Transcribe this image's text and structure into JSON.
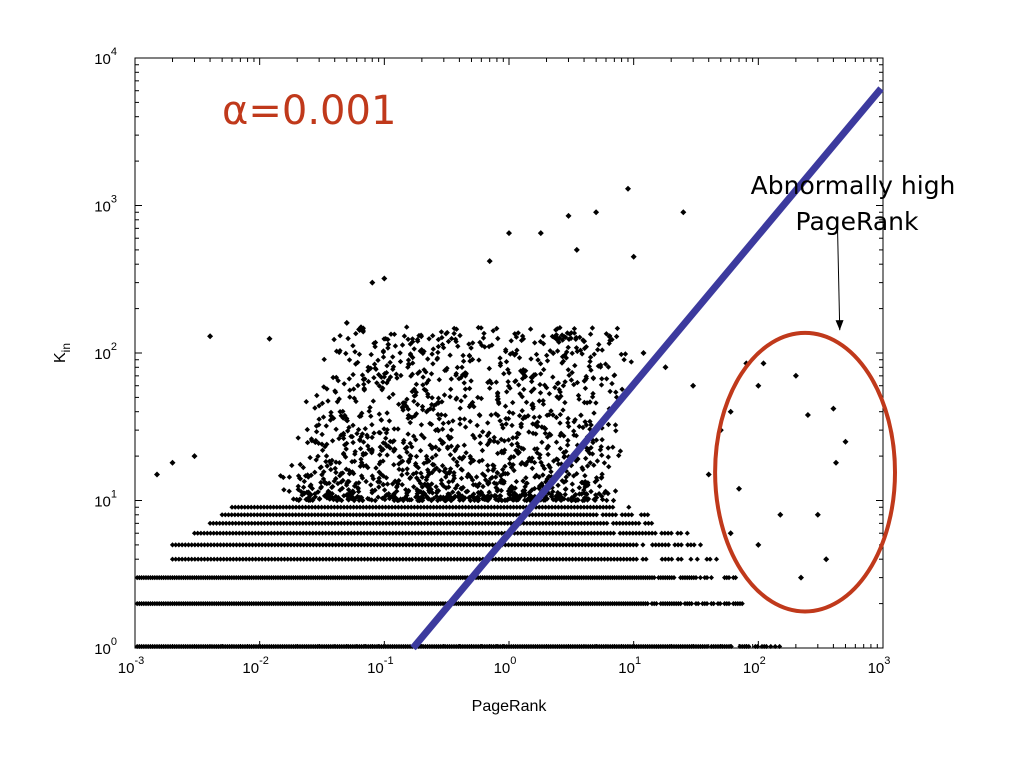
{
  "chart_data": {
    "type": "scatter",
    "title": "",
    "xlabel": "PageRank",
    "ylabel": "K_in",
    "ylabel_main": "K",
    "ylabel_sub": "in",
    "x_scale": "log",
    "y_scale": "log",
    "xlim": [
      0.001,
      1000
    ],
    "ylim": [
      1,
      10000
    ],
    "x_ticks": [
      {
        "base": "10",
        "exp": "-3",
        "value": 0.001
      },
      {
        "base": "10",
        "exp": "-2",
        "value": 0.01
      },
      {
        "base": "10",
        "exp": "-1",
        "value": 0.1
      },
      {
        "base": "10",
        "exp": "0",
        "value": 1
      },
      {
        "base": "10",
        "exp": "1",
        "value": 10
      },
      {
        "base": "10",
        "exp": "2",
        "value": 100
      },
      {
        "base": "10",
        "exp": "3",
        "value": 1000
      }
    ],
    "y_ticks": [
      {
        "base": "10",
        "exp": "0",
        "value": 1
      },
      {
        "base": "10",
        "exp": "1",
        "value": 10
      },
      {
        "base": "10",
        "exp": "2",
        "value": 100
      },
      {
        "base": "10",
        "exp": "3",
        "value": 1000
      },
      {
        "base": "10",
        "exp": "4",
        "value": 10000
      }
    ],
    "grid": false,
    "marker_color": "#000000",
    "integer_bands": [
      {
        "y": 1,
        "x_from": 0.001,
        "x_to": 150
      },
      {
        "y": 2,
        "x_from": 0.001,
        "x_to": 80
      },
      {
        "y": 3,
        "x_from": 0.001,
        "x_to": 70
      },
      {
        "y": 4,
        "x_from": 0.002,
        "x_to": 50
      },
      {
        "y": 5,
        "x_from": 0.002,
        "x_to": 40
      },
      {
        "y": 6,
        "x_from": 0.003,
        "x_to": 30
      },
      {
        "y": 7,
        "x_from": 0.004,
        "x_to": 20
      },
      {
        "y": 8,
        "x_from": 0.005,
        "x_to": 15
      },
      {
        "y": 9,
        "x_from": 0.006,
        "x_to": 10
      }
    ],
    "cluster": {
      "x_from": 0.005,
      "x_to": 20,
      "y_from": 10,
      "y_to": 150
    },
    "points": [
      {
        "x": 250,
        "y": 38
      },
      {
        "x": 400,
        "y": 42
      },
      {
        "x": 500,
        "y": 25
      },
      {
        "x": 420,
        "y": 18
      },
      {
        "x": 300,
        "y": 8
      },
      {
        "x": 220,
        "y": 3
      },
      {
        "x": 350,
        "y": 4
      },
      {
        "x": 80,
        "y": 85
      },
      {
        "x": 110,
        "y": 85
      },
      {
        "x": 100,
        "y": 60
      },
      {
        "x": 150,
        "y": 8
      },
      {
        "x": 60,
        "y": 40
      },
      {
        "x": 9,
        "y": 1300
      },
      {
        "x": 5,
        "y": 900
      },
      {
        "x": 25,
        "y": 900
      },
      {
        "x": 3,
        "y": 850
      },
      {
        "x": 10,
        "y": 450
      },
      {
        "x": 1.8,
        "y": 650
      },
      {
        "x": 1,
        "y": 650
      },
      {
        "x": 0.7,
        "y": 420
      },
      {
        "x": 3.5,
        "y": 500
      },
      {
        "x": 0.1,
        "y": 320
      },
      {
        "x": 0.08,
        "y": 300
      },
      {
        "x": 4,
        "y": 120
      },
      {
        "x": 0.004,
        "y": 130
      },
      {
        "x": 0.05,
        "y": 160
      },
      {
        "x": 0.012,
        "y": 125
      },
      {
        "x": 12,
        "y": 100
      },
      {
        "x": 18,
        "y": 80
      },
      {
        "x": 30,
        "y": 60
      },
      {
        "x": 50,
        "y": 30
      },
      {
        "x": 40,
        "y": 15
      },
      {
        "x": 70,
        "y": 12
      },
      {
        "x": 100,
        "y": 5
      },
      {
        "x": 60,
        "y": 6
      },
      {
        "x": 200,
        "y": 70
      },
      {
        "x": 0.002,
        "y": 18
      },
      {
        "x": 0.0015,
        "y": 15
      },
      {
        "x": 0.003,
        "y": 20
      }
    ],
    "fit_line": {
      "color": "#3c3a9e",
      "points": [
        {
          "x": 0.17,
          "y": 1
        },
        {
          "x": 1000,
          "y": 6200
        }
      ]
    },
    "annotations": [
      {
        "kind": "alpha",
        "symbol": "α",
        "text": "=0.001",
        "color": "#c0391b"
      },
      {
        "kind": "note",
        "lines": [
          "Abnormally high",
          "PageRank"
        ],
        "color": "#000000"
      }
    ],
    "highlight_ellipse": {
      "color": "#c0391b",
      "x_from": 45,
      "x_to": 1000,
      "y_from": 2.2,
      "y_to": 110
    },
    "arrow": {
      "from": {
        "x": 430,
        "y": 700
      },
      "to": {
        "x": 450,
        "y": 130
      },
      "color": "#000000"
    }
  }
}
